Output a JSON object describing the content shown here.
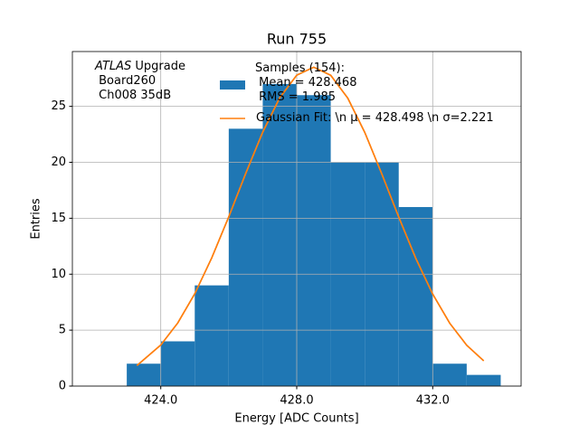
{
  "chart_data": {
    "type": "histogram",
    "title": "Run 755",
    "xlabel": "Energy [ADC Counts]",
    "ylabel": "Entries",
    "annotation": [
      "ATLAS",
      " Upgrade\n Board260\n Ch008 35dB"
    ],
    "bins": [
      423,
      424,
      425,
      426,
      427,
      428,
      429,
      430,
      431,
      432,
      433,
      434
    ],
    "series": [
      {
        "type": "histogram",
        "name": "Samples (154):\n Mean = 428.468\n RMS = 1.985",
        "color": "#1f77b4",
        "values": [
          2,
          4,
          9,
          23,
          27,
          26,
          20,
          20,
          16,
          2,
          1
        ]
      },
      {
        "type": "line",
        "name": "Gaussian Fit: \\n μ = 428.498 \\n σ=2.221",
        "color": "#ff7f0e",
        "x": [
          423.3,
          424,
          424.5,
          425,
          425.5,
          426,
          426.5,
          427,
          427.5,
          428,
          428.5,
          429,
          429.5,
          430,
          430.5,
          431,
          431.5,
          432,
          432.5,
          433,
          433.5
        ],
        "values": [
          1.84,
          3.67,
          5.64,
          8.25,
          11.46,
          15.13,
          19.01,
          22.7,
          25.77,
          27.79,
          28.5,
          27.78,
          25.74,
          22.68,
          18.98,
          15.11,
          11.43,
          8.22,
          5.62,
          3.65,
          2.26
        ]
      }
    ],
    "xlim": [
      421.4,
      434.6
    ],
    "ylim": [
      0,
      29.9
    ],
    "xticks": [
      {
        "value": 424,
        "label": "424.0"
      },
      {
        "value": 428,
        "label": "428.0"
      },
      {
        "value": 432,
        "label": "432.0"
      }
    ],
    "yticks": [
      0,
      5,
      10,
      15,
      20,
      25
    ],
    "grid": true
  }
}
